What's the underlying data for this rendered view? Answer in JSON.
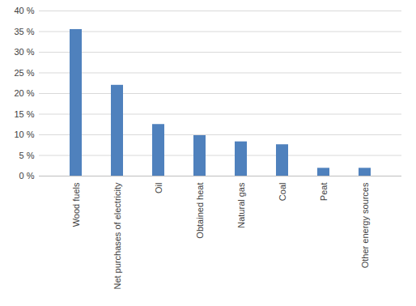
{
  "chart_data": {
    "type": "bar",
    "categories": [
      "Wood fuels",
      "Net purchases of electricity",
      "Oil",
      "Obtained heat",
      "Natural gas",
      "Coal",
      "Peat",
      "Other energy sources"
    ],
    "values": [
      35.5,
      22.0,
      12.5,
      9.8,
      8.3,
      7.6,
      1.9,
      1.9
    ],
    "color": "#4f81bd",
    "ylim": [
      0,
      40
    ],
    "yticks": [
      {
        "value": 0,
        "label": "0 %"
      },
      {
        "value": 5,
        "label": "5 %"
      },
      {
        "value": 10,
        "label": "10 %"
      },
      {
        "value": 15,
        "label": "15 %"
      },
      {
        "value": 20,
        "label": "20 %"
      },
      {
        "value": 25,
        "label": "25 %"
      },
      {
        "value": 30,
        "label": "30 %"
      },
      {
        "value": 35,
        "label": "35 %"
      },
      {
        "value": 40,
        "label": "40 %"
      }
    ],
    "grid": true
  }
}
